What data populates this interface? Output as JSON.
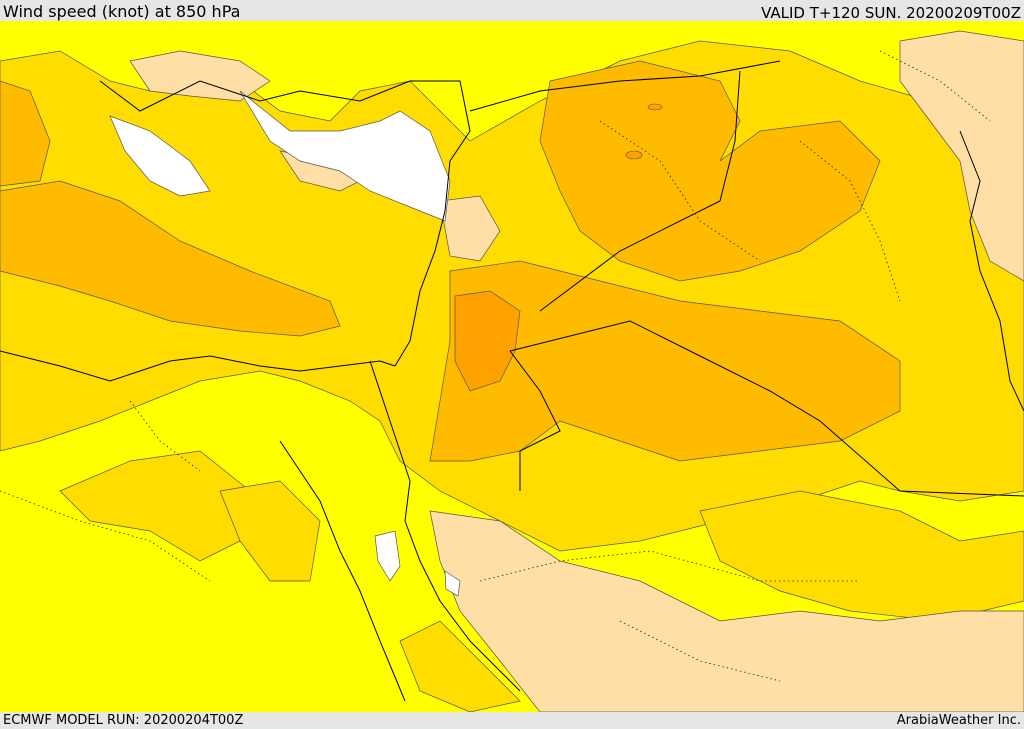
{
  "header": {
    "title": "Wind speed (knot) at 850 hPa",
    "valid": "VALID T+120 SUN. 20200209T00Z"
  },
  "footer": {
    "model_run": "ECMWF MODEL RUN: 20200204T00Z",
    "brand": "ArabiaWeather Inc."
  },
  "palette": {
    "calm": "#ffffff",
    "low": "#ffdfa6",
    "moderate": "#ffff00",
    "elevated": "#ffdd00",
    "strong": "#ffbb00",
    "very_strong": "#ffa200",
    "boundary": "#000000"
  }
}
